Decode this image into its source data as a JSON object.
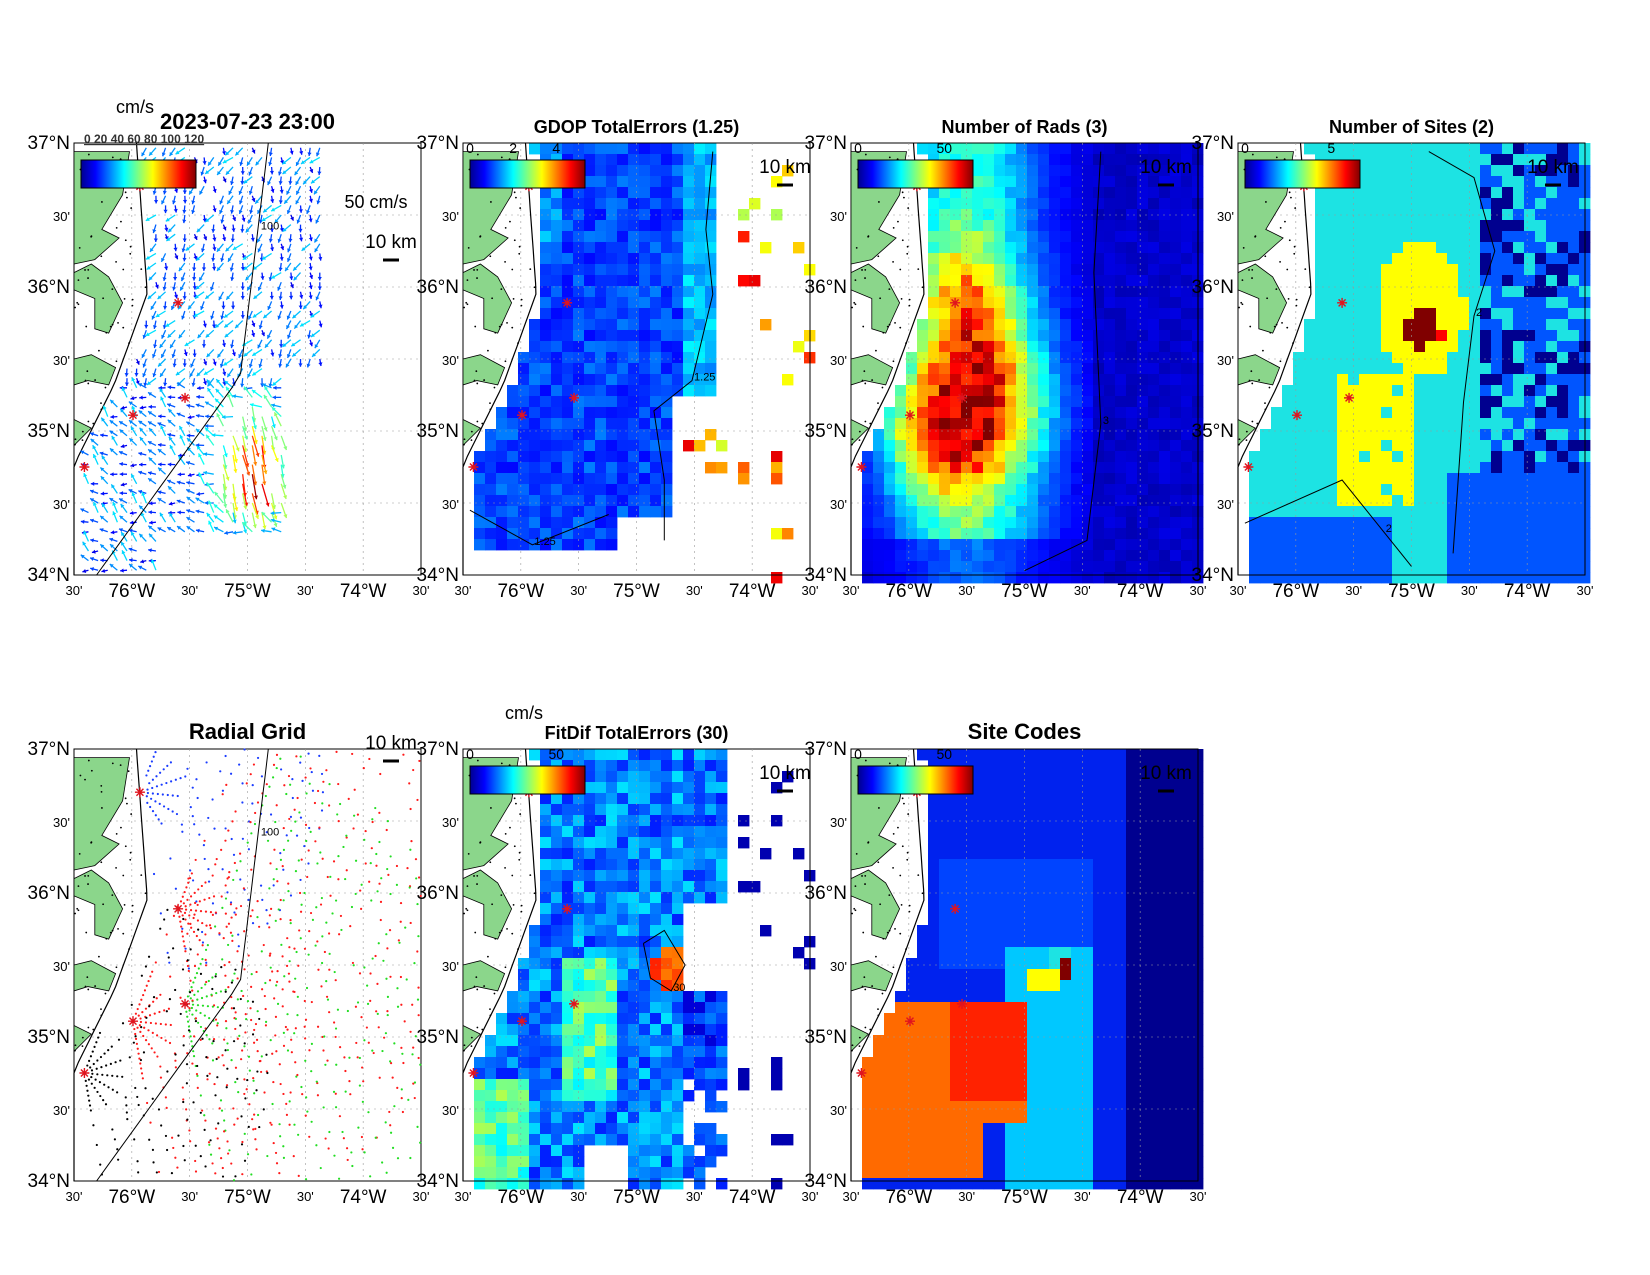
{
  "figure": {
    "timestamp": "2023-07-23 23:00",
    "colors": {
      "land": "#8bd68b",
      "coast": "#000000",
      "site_marker": "#e0141e",
      "deep_blue": "#00008f",
      "grid_red": "#ff1a1a",
      "grid_blue": "#1a3cff",
      "grid_green": "#22dd22",
      "grid_black": "#000000"
    },
    "scale_label": "10 km",
    "axes": {
      "lat_labels": [
        "37°N",
        "30'",
        "36°N",
        "30'",
        "35°N",
        "30'",
        "34°N"
      ],
      "lon_labels": [
        "30'",
        "76°W",
        "30'",
        "75°W",
        "30'",
        "74°W",
        "30'"
      ]
    },
    "panels": [
      {
        "id": "currents",
        "title": "2023-07-23 23:00",
        "colorbar_units": "cm/s",
        "colorbar_ticks": [],
        "overlap_label": "0  20  40  60  80 100 120",
        "vector_legend": "50 cm/s",
        "contour_label": "100"
      },
      {
        "id": "gdop",
        "title": "GDOP TotalErrors (1.25)",
        "colorbar_units": "",
        "colorbar_ticks": [
          "0",
          "2",
          "4"
        ],
        "contour_label": "1.25"
      },
      {
        "id": "nrads",
        "title": "Number of Rads (3)",
        "colorbar_units": "",
        "colorbar_ticks": [
          "0",
          "50"
        ],
        "contour_label": "3"
      },
      {
        "id": "nsites",
        "title": "Number of Sites (2)",
        "colorbar_units": "",
        "colorbar_ticks": [
          "0",
          "5"
        ],
        "contour_label": "2"
      },
      {
        "id": "radial",
        "title": "Radial Grid",
        "colorbar_units": "",
        "colorbar_ticks": [],
        "contour_label": "100"
      },
      {
        "id": "fitdif",
        "title": "FitDif TotalErrors (30)",
        "colorbar_units": "cm/s",
        "colorbar_ticks": [
          "0",
          "50"
        ],
        "contour_label": "30"
      },
      {
        "id": "sitecodes",
        "title": "Site Codes",
        "colorbar_units": "",
        "colorbar_ticks": [
          "0",
          "50"
        ],
        "contour_label": ""
      }
    ]
  }
}
